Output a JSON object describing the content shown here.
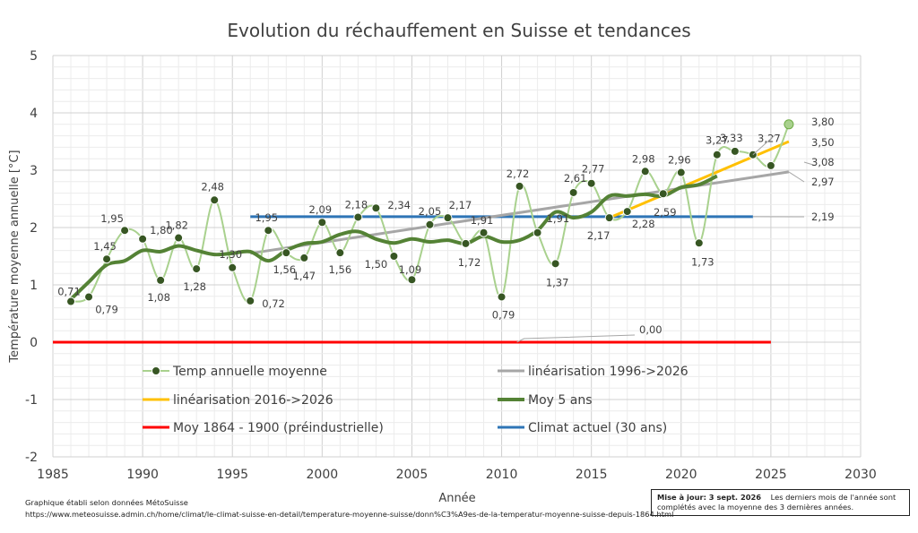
{
  "chart_data": {
    "type": "line",
    "title": "Evolution du réchauffement en Suisse et tendances",
    "xlabel": "Année",
    "ylabel": "Température moyenne annuelle [°C]",
    "xlim": [
      1985,
      2030
    ],
    "ylim": [
      -2,
      5
    ],
    "x_ticks": [
      1985,
      1990,
      1995,
      2000,
      2005,
      2010,
      2015,
      2020,
      2025,
      2030
    ],
    "y_ticks": [
      -2,
      -1,
      0,
      1,
      2,
      3,
      4,
      5
    ],
    "grid": true,
    "series": [
      {
        "name": "Temp annuelle moyenne",
        "color": "#a9d18e",
        "marker_color": "#375623",
        "x": [
          1986,
          1987,
          1988,
          1989,
          1990,
          1991,
          1992,
          1993,
          1994,
          1995,
          1996,
          1997,
          1998,
          1999,
          2000,
          2001,
          2002,
          2003,
          2004,
          2005,
          2006,
          2007,
          2008,
          2009,
          2010,
          2011,
          2012,
          2013,
          2014,
          2015,
          2016,
          2017,
          2018,
          2019,
          2020,
          2021,
          2022,
          2023,
          2024,
          2025,
          2026
        ],
        "y": [
          0.71,
          0.79,
          1.45,
          1.95,
          1.8,
          1.08,
          1.82,
          1.28,
          2.48,
          1.3,
          0.72,
          1.95,
          1.56,
          1.47,
          2.09,
          1.56,
          2.18,
          2.34,
          1.5,
          1.09,
          2.05,
          2.17,
          1.72,
          1.91,
          0.79,
          2.72,
          1.91,
          1.37,
          2.61,
          2.77,
          2.17,
          2.28,
          2.98,
          2.59,
          2.96,
          1.73,
          3.27,
          3.33,
          3.27,
          3.08,
          3.8
        ]
      },
      {
        "name": "linéarisation 1996->2026",
        "color": "#a6a6a6",
        "x": [
          1996,
          2026
        ],
        "y": [
          1.55,
          2.97
        ]
      },
      {
        "name": "linéarisation 2016->2026",
        "color": "#ffc000",
        "x": [
          2016,
          2026
        ],
        "y": [
          2.17,
          3.5
        ]
      },
      {
        "name": "Moy 5 ans",
        "color": "#548235",
        "x": [
          1986,
          1987,
          1988,
          1989,
          1990,
          1991,
          1992,
          1993,
          1994,
          1995,
          1996,
          1997,
          1998,
          1999,
          2000,
          2001,
          2002,
          2003,
          2004,
          2005,
          2006,
          2007,
          2008,
          2009,
          2010,
          2011,
          2012,
          2013,
          2014,
          2015,
          2016,
          2017,
          2018,
          2019,
          2020,
          2021,
          2022
        ],
        "y": [
          0.75,
          1.05,
          1.35,
          1.42,
          1.6,
          1.58,
          1.68,
          1.6,
          1.53,
          1.55,
          1.58,
          1.42,
          1.6,
          1.72,
          1.75,
          1.88,
          1.93,
          1.8,
          1.73,
          1.8,
          1.75,
          1.78,
          1.72,
          1.85,
          1.75,
          1.78,
          1.95,
          2.27,
          2.17,
          2.27,
          2.55,
          2.55,
          2.58,
          2.55,
          2.7,
          2.75,
          2.9
        ]
      },
      {
        "name": "Moy 1864 - 1900 (préindustrielle)",
        "color": "#ff0000",
        "x": [
          1985,
          2025
        ],
        "y": [
          0,
          0
        ]
      },
      {
        "name": "Climat actuel (30 ans)",
        "color": "#2e75b6",
        "x": [
          1996,
          2024
        ],
        "y": [
          2.19,
          2.19
        ]
      }
    ],
    "data_labels": [
      {
        "x": 1986,
        "y": 0.71,
        "text": "0,71"
      },
      {
        "x": 1987,
        "y": 0.79,
        "text": "0,79"
      },
      {
        "x": 1988,
        "y": 1.45,
        "text": "1,45"
      },
      {
        "x": 1989,
        "y": 1.95,
        "text": "1,95"
      },
      {
        "x": 1990,
        "y": 1.8,
        "text": "1,80"
      },
      {
        "x": 1991,
        "y": 1.08,
        "text": "1,08"
      },
      {
        "x": 1992,
        "y": 1.82,
        "text": "1,82"
      },
      {
        "x": 1993,
        "y": 1.28,
        "text": "1,28"
      },
      {
        "x": 1994,
        "y": 2.48,
        "text": "2,48"
      },
      {
        "x": 1995,
        "y": 1.3,
        "text": "1,30"
      },
      {
        "x": 1996,
        "y": 0.72,
        "text": "0,72"
      },
      {
        "x": 1997,
        "y": 1.95,
        "text": "1,95"
      },
      {
        "x": 1998,
        "y": 1.56,
        "text": "1,56"
      },
      {
        "x": 1999,
        "y": 1.47,
        "text": "1,47"
      },
      {
        "x": 2000,
        "y": 2.09,
        "text": "2,09"
      },
      {
        "x": 2001,
        "y": 1.56,
        "text": "1,56"
      },
      {
        "x": 2002,
        "y": 2.18,
        "text": "2,18"
      },
      {
        "x": 2003,
        "y": 2.34,
        "text": "2,34"
      },
      {
        "x": 2004,
        "y": 1.5,
        "text": "1,50"
      },
      {
        "x": 2005,
        "y": 1.09,
        "text": "1,09"
      },
      {
        "x": 2006,
        "y": 2.05,
        "text": "2,05"
      },
      {
        "x": 2007,
        "y": 2.17,
        "text": "2,17"
      },
      {
        "x": 2008,
        "y": 1.72,
        "text": "1,72"
      },
      {
        "x": 2009,
        "y": 1.91,
        "text": "1,91"
      },
      {
        "x": 2010,
        "y": 0.79,
        "text": "0,79"
      },
      {
        "x": 2011,
        "y": 2.72,
        "text": "2,72"
      },
      {
        "x": 2012,
        "y": 1.91,
        "text": "1,91"
      },
      {
        "x": 2013,
        "y": 1.37,
        "text": "1,37"
      },
      {
        "x": 2014,
        "y": 2.61,
        "text": "2,61"
      },
      {
        "x": 2015,
        "y": 2.77,
        "text": "2,77"
      },
      {
        "x": 2016,
        "y": 2.17,
        "text": "2,17"
      },
      {
        "x": 2017,
        "y": 2.28,
        "text": "2,28"
      },
      {
        "x": 2018,
        "y": 2.98,
        "text": "2,98"
      },
      {
        "x": 2019,
        "y": 2.59,
        "text": "2,59"
      },
      {
        "x": 2020,
        "y": 2.96,
        "text": "2,96"
      },
      {
        "x": 2021,
        "y": 1.73,
        "text": "1,73"
      },
      {
        "x": 2022,
        "y": 3.27,
        "text": "3,27"
      },
      {
        "x": 2023,
        "y": 3.33,
        "text": "3,33"
      },
      {
        "x": 2024,
        "y": 3.27,
        "text": "3,27"
      },
      {
        "x": 2026,
        "y": 3.8,
        "text": "3,80"
      },
      {
        "x": 2026,
        "y": 3.5,
        "text": "3,50"
      },
      {
        "x": 2026,
        "y": 3.08,
        "text": "3,08"
      },
      {
        "x": 2026,
        "y": 2.97,
        "text": "2,97"
      },
      {
        "x": 2026,
        "y": 2.19,
        "text": "2,19"
      },
      {
        "x": 2026,
        "y": 0.0,
        "text": "0,00"
      }
    ],
    "legend_position": "bottom-inside"
  },
  "footer": {
    "source_line1": "Graphique établi selon données MétoSuisse",
    "source_line2": "https://www.meteosuisse.admin.ch/home/climat/le-climat-suisse-en-detail/temperature-moyenne-suisse/donn%C3%A9es-de-la-temperatur-moyenne-suisse-depuis-1864.html",
    "update_label": "Mise à jour: 3 sept. 2026",
    "update_note": "Les derniers mois de l'année sont complétés avec la moyenne des 3 dernières années."
  }
}
